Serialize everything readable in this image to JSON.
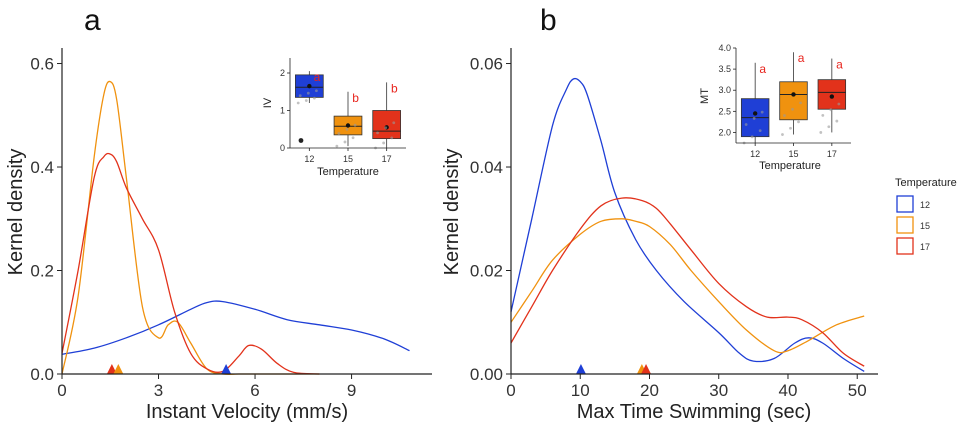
{
  "colors": {
    "12": "#1f3fd6",
    "15": "#f0920f",
    "17": "#e2321b"
  },
  "legend": {
    "title": "Temperature",
    "items": [
      "12",
      "15",
      "17"
    ]
  },
  "chart_data": [
    {
      "panel": "a",
      "type": "line",
      "xlabel": "Instant Velocity (mm/s)",
      "ylabel": "Kernel density",
      "xlim": [
        0,
        11.5
      ],
      "ylim": [
        0,
        0.63
      ],
      "xticks": [
        "0",
        "3",
        "6",
        "9"
      ],
      "xtick_values": [
        0,
        3,
        6,
        9
      ],
      "yticks": [
        "0.0",
        "0.2",
        "0.4",
        "0.6"
      ],
      "ytick_values": [
        0,
        0.2,
        0.4,
        0.6
      ],
      "series": [
        {
          "name": "12",
          "x": [
            0,
            1,
            2,
            3,
            4,
            4.5,
            5,
            6,
            7,
            8,
            9,
            10,
            10.8
          ],
          "y": [
            0.038,
            0.05,
            0.07,
            0.095,
            0.125,
            0.138,
            0.14,
            0.125,
            0.105,
            0.095,
            0.085,
            0.068,
            0.045
          ]
        },
        {
          "name": "15",
          "x": [
            0,
            0.5,
            1,
            1.3,
            1.5,
            1.7,
            2,
            2.5,
            3,
            3.3,
            3.6,
            4,
            4.5,
            5,
            5.5,
            6,
            7,
            8
          ],
          "y": [
            0,
            0.15,
            0.42,
            0.54,
            0.565,
            0.53,
            0.38,
            0.13,
            0.07,
            0.095,
            0.1,
            0.06,
            0.01,
            0,
            0,
            0,
            0,
            0
          ]
        },
        {
          "name": "17",
          "x": [
            0,
            0.5,
            1,
            1.3,
            1.5,
            1.7,
            2,
            2.5,
            3,
            3.5,
            4,
            4.5,
            5,
            5.5,
            5.8,
            6.2,
            6.7,
            7.2,
            8
          ],
          "y": [
            0.04,
            0.2,
            0.38,
            0.42,
            0.425,
            0.41,
            0.36,
            0.3,
            0.24,
            0.12,
            0.04,
            0.01,
            0.005,
            0.035,
            0.055,
            0.048,
            0.02,
            0.003,
            0
          ]
        }
      ],
      "markers": [
        {
          "name": "17",
          "x": 1.55
        },
        {
          "name": "15",
          "x": 1.75
        },
        {
          "name": "12",
          "x": 5.1
        }
      ],
      "inset": {
        "type": "box",
        "xlabel": "Temperature",
        "ylabel": "IV",
        "categories": [
          "12",
          "15",
          "17"
        ],
        "ylim": [
          0,
          2.4
        ],
        "yticks": [
          "0",
          "1",
          "2"
        ],
        "ytick_values": [
          0,
          1,
          2
        ],
        "boxes": [
          {
            "name": "12",
            "q1": 1.35,
            "median": 1.62,
            "q3": 1.95,
            "whisker_low": 1.2,
            "whisker_high": 2.05,
            "mean": 1.65,
            "outliers": [
              0.2
            ],
            "letter": "a"
          },
          {
            "name": "15",
            "q1": 0.35,
            "median": 0.58,
            "q3": 0.85,
            "whisker_low": 0.05,
            "whisker_high": 1.5,
            "mean": 0.6,
            "outliers": [],
            "letter": "b"
          },
          {
            "name": "17",
            "q1": 0.25,
            "median": 0.45,
            "q3": 1.0,
            "whisker_low": 0,
            "whisker_high": 1.75,
            "mean": 0.55,
            "outliers": [],
            "letter": "b"
          }
        ]
      }
    },
    {
      "panel": "b",
      "type": "line",
      "xlabel": "Max Time Swimming (sec)",
      "ylabel": "Kernel density",
      "xlim": [
        0,
        53
      ],
      "ylim": [
        0,
        0.063
      ],
      "xticks": [
        "0",
        "10",
        "20",
        "30",
        "40",
        "50"
      ],
      "xtick_values": [
        0,
        10,
        20,
        30,
        40,
        50
      ],
      "yticks": [
        "0.00",
        "0.02",
        "0.04",
        "0.06"
      ],
      "ytick_values": [
        0,
        0.02,
        0.04,
        0.06
      ],
      "series": [
        {
          "name": "12",
          "x": [
            0,
            3,
            6,
            8,
            9,
            10,
            11,
            13,
            15,
            18,
            21,
            25,
            30,
            33,
            35,
            38,
            41,
            43,
            45,
            48,
            51
          ],
          "y": [
            0.012,
            0.03,
            0.048,
            0.055,
            0.057,
            0.0565,
            0.054,
            0.045,
            0.035,
            0.026,
            0.02,
            0.014,
            0.008,
            0.004,
            0.0025,
            0.003,
            0.006,
            0.007,
            0.006,
            0.003,
            0.0005
          ]
        },
        {
          "name": "15",
          "x": [
            0,
            3,
            6,
            10,
            13,
            16,
            18,
            20,
            23,
            26,
            30,
            34,
            38,
            40,
            43,
            47,
            51
          ],
          "y": [
            0.01,
            0.016,
            0.022,
            0.027,
            0.0295,
            0.03,
            0.0295,
            0.0285,
            0.025,
            0.02,
            0.014,
            0.0085,
            0.0045,
            0.0045,
            0.0065,
            0.0095,
            0.0112
          ]
        },
        {
          "name": "17",
          "x": [
            0,
            3,
            6,
            10,
            13,
            16,
            19,
            21,
            23,
            26,
            30,
            34,
            37,
            40,
            42,
            45,
            48,
            51
          ],
          "y": [
            0.006,
            0.013,
            0.02,
            0.028,
            0.0325,
            0.034,
            0.0335,
            0.032,
            0.029,
            0.024,
            0.0175,
            0.013,
            0.011,
            0.011,
            0.0105,
            0.008,
            0.004,
            0.0015
          ]
        }
      ],
      "markers": [
        {
          "name": "12",
          "x": 10.1
        },
        {
          "name": "15",
          "x": 18.9
        },
        {
          "name": "17",
          "x": 19.5
        }
      ],
      "inset": {
        "type": "box",
        "xlabel": "Temperature",
        "ylabel": "MT",
        "categories": [
          "12",
          "15",
          "17"
        ],
        "ylim": [
          1.75,
          4.0
        ],
        "yticks": [
          "2.0",
          "2.5",
          "3.0",
          "3.5",
          "4.0"
        ],
        "ytick_values": [
          2,
          2.5,
          3,
          3.5,
          4
        ],
        "boxes": [
          {
            "name": "12",
            "q1": 1.9,
            "median": 2.35,
            "q3": 2.8,
            "whisker_low": 1.75,
            "whisker_high": 3.65,
            "mean": 2.45,
            "outliers": [],
            "letter": "a"
          },
          {
            "name": "15",
            "q1": 2.3,
            "median": 2.9,
            "q3": 3.2,
            "whisker_low": 1.95,
            "whisker_high": 3.9,
            "mean": 2.9,
            "outliers": [],
            "letter": "a"
          },
          {
            "name": "17",
            "q1": 2.55,
            "median": 2.95,
            "q3": 3.25,
            "whisker_low": 2.0,
            "whisker_high": 3.75,
            "mean": 2.85,
            "outliers": [],
            "letter": "a"
          }
        ]
      }
    }
  ]
}
